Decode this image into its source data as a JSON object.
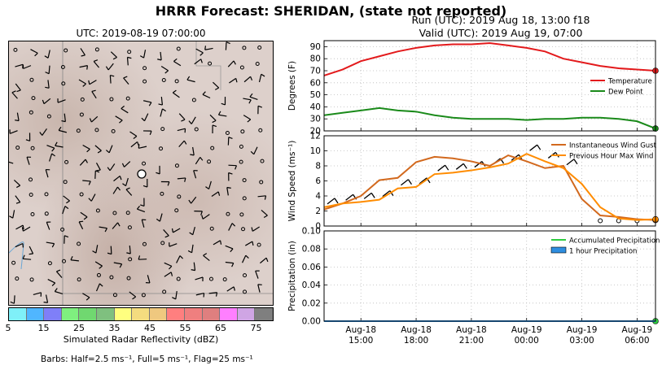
{
  "header": {
    "title": "HRRR Forecast: SHERIDAN, (state not reported)",
    "run": "Run (UTC): 2019 Aug 18, 13:00 f18",
    "valid": "Valid (UTC): 2019 Aug 19, 07:00"
  },
  "map": {
    "title": "UTC: 2019-08-19 07:00:00",
    "colorbar_label": "Simulated Radar Reflectivity (dBZ)",
    "colorbar_ticks": [
      "5",
      "15",
      "25",
      "35",
      "45",
      "55",
      "65",
      "75"
    ],
    "colorbar_colors": [
      "#7ff0f8",
      "#50b6ff",
      "#7f7ff8",
      "#7ff07f",
      "#70d870",
      "#7fc07f",
      "#ffff7f",
      "#f4dc7f",
      "#efc87f",
      "#ff7f7f",
      "#ef7f7f",
      "#df7f7f",
      "#ff7fff",
      "#cfa5e4",
      "#7f7f7f"
    ],
    "barbs_note": "Barbs: Half=2.5 ms⁻¹, Full=5 ms⁻¹, Flag=25 ms⁻¹"
  },
  "chart_data": [
    {
      "type": "line",
      "ylabel": "Degrees (F)",
      "ylim": [
        20,
        95
      ],
      "yticks": [
        "20",
        "30",
        "40",
        "50",
        "60",
        "70",
        "80",
        "90"
      ],
      "grid": true,
      "legend": "center-right",
      "x_hours": [
        0,
        1,
        2,
        3,
        4,
        5,
        6,
        7,
        8,
        9,
        10,
        11,
        12,
        13,
        14,
        15,
        16,
        17,
        18
      ],
      "series": [
        {
          "name": "Temperature",
          "color": "#e31a1c",
          "values": [
            66,
            71,
            78,
            82,
            86,
            89,
            91,
            92,
            92,
            93,
            91,
            89,
            86,
            80,
            77,
            74,
            72,
            71,
            70
          ]
        },
        {
          "name": "Dew Point",
          "color": "#1a8a1a",
          "values": [
            33,
            35,
            37,
            39,
            37,
            36,
            33,
            31,
            30,
            30,
            30,
            29,
            30,
            30,
            31,
            31,
            30,
            28,
            22
          ]
        }
      ]
    },
    {
      "type": "line",
      "ylabel": "Wind Speed (ms⁻¹)",
      "ylim": [
        0,
        12
      ],
      "yticks": [
        "0",
        "2",
        "4",
        "6",
        "8",
        "10",
        "12"
      ],
      "grid": true,
      "legend": "top-right",
      "x_hours": [
        0,
        1,
        2,
        3,
        4,
        5,
        6,
        7,
        8,
        9,
        10,
        11,
        12,
        13,
        14,
        15,
        16,
        17,
        18
      ],
      "series": [
        {
          "name": "Instantaneous Wind Gust",
          "color": "#d2691e",
          "values": [
            2.2,
            3.0,
            4.0,
            6.1,
            6.4,
            8.5,
            9.2,
            9.0,
            8.6,
            8.0,
            9.4,
            8.6,
            7.7,
            8.0,
            3.6,
            1.4,
            1.2,
            0.9,
            0.8
          ]
        },
        {
          "name": "Previous Hour Max Wind",
          "color": "#ff8c00",
          "values": [
            2.5,
            3.0,
            3.2,
            3.5,
            5.0,
            5.2,
            6.9,
            7.1,
            7.4,
            7.8,
            8.3,
            9.6,
            8.6,
            7.7,
            5.6,
            2.5,
            1.0,
            0.8,
            0.9
          ]
        }
      ]
    },
    {
      "type": "line",
      "ylabel": "Precipitation (in)",
      "ylim": [
        0.0,
        0.1
      ],
      "yticks": [
        "0.00",
        "0.02",
        "0.04",
        "0.06",
        "0.08",
        "0.10"
      ],
      "grid": true,
      "legend": "top-right",
      "x_hours": [
        0,
        1,
        2,
        3,
        4,
        5,
        6,
        7,
        8,
        9,
        10,
        11,
        12,
        13,
        14,
        15,
        16,
        17,
        18
      ],
      "series": [
        {
          "name": "Accumulated Precipitation",
          "color": "#2ecc40",
          "values": [
            0,
            0,
            0,
            0,
            0,
            0,
            0,
            0,
            0,
            0,
            0,
            0,
            0,
            0,
            0,
            0,
            0,
            0,
            0
          ]
        },
        {
          "name": "1 hour Precipitation",
          "color": "#2e8ee0",
          "values": [
            0,
            0,
            0,
            0,
            0,
            0,
            0,
            0,
            0,
            0,
            0,
            0,
            0,
            0,
            0,
            0,
            0,
            0,
            0
          ]
        }
      ],
      "xticks": [
        {
          "hour": 2,
          "label": [
            "Aug-18",
            "15:00"
          ]
        },
        {
          "hour": 5,
          "label": [
            "Aug-18",
            "18:00"
          ]
        },
        {
          "hour": 8,
          "label": [
            "Aug-18",
            "21:00"
          ]
        },
        {
          "hour": 11,
          "label": [
            "Aug-19",
            "00:00"
          ]
        },
        {
          "hour": 14,
          "label": [
            "Aug-19",
            "03:00"
          ]
        },
        {
          "hour": 17,
          "label": [
            "Aug-19",
            "06:00"
          ]
        }
      ]
    }
  ]
}
